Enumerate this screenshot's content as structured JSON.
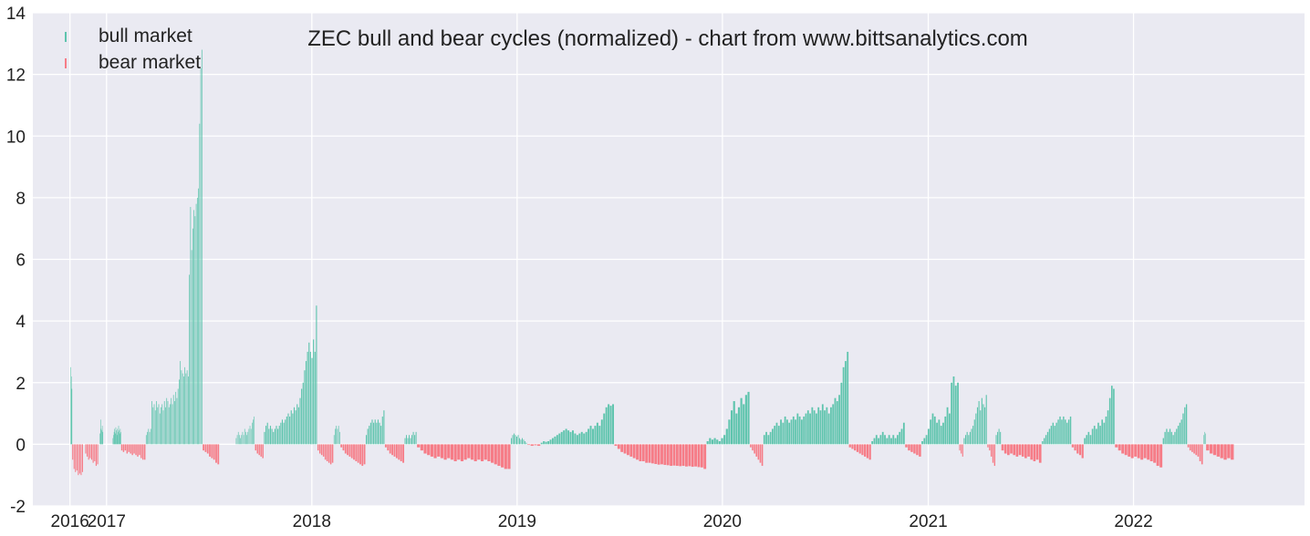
{
  "chart_data": {
    "type": "bar",
    "title": "ZEC bull and bear cycles (normalized)  - chart from www.bittsanalytics.com",
    "xlabel": "",
    "ylabel": "",
    "ylim": [
      -2,
      14
    ],
    "yticks": [
      -2,
      0,
      2,
      4,
      6,
      8,
      10,
      12,
      14
    ],
    "xticks": [
      "2016",
      "2017",
      "2018",
      "2019",
      "2020",
      "2021",
      "2022"
    ],
    "xtick_dates": [
      "2016-10-28",
      "2017-01-01",
      "2018-01-01",
      "2019-01-01",
      "2020-01-01",
      "2021-01-01",
      "2022-01-01"
    ],
    "xlim": [
      "2016-08-23",
      "2022-11-01"
    ],
    "grid": true,
    "legend_position": "top-left",
    "colors": {
      "bull": "#5ec4ad",
      "bear": "#f67c87",
      "plot_bg": "#eaeaf2",
      "grid": "#ffffff"
    },
    "series": [
      {
        "name": "bull market",
        "color": "#5ec4ad",
        "segments": [
          {
            "start": "2016-10-29",
            "end": "2016-10-31",
            "values": [
              2.5,
              2.2,
              1.8
            ]
          },
          {
            "start": "2016-12-20",
            "end": "2016-12-25",
            "values": [
              0.35,
              0.8,
              0.5,
              0.45,
              0.6,
              0.4
            ]
          },
          {
            "start": "2017-01-12",
            "end": "2017-01-26",
            "values": [
              0.2,
              0.3,
              0.4,
              0.5,
              0.35,
              0.55,
              0.45,
              0.3,
              0.5,
              0.4,
              0.6,
              0.45,
              0.35,
              0.5,
              0.4
            ]
          },
          {
            "start": "2017-03-12",
            "end": "2017-06-20",
            "values": [
              0.3,
              0.4,
              0.5,
              0.4,
              0.5,
              1.4,
              1.2,
              1.3,
              1.1,
              1.4,
              1.2,
              1.3,
              1.0,
              1.2,
              1.3,
              1.1,
              1.4,
              1.2,
              1.5,
              1.4,
              1.2,
              1.3,
              1.5,
              1.3,
              1.6,
              1.4,
              1.7,
              1.5,
              1.8,
              2.1,
              2.7,
              2.4,
              2.3,
              2.2,
              2.5,
              2.3,
              2.4,
              2.2,
              5.5,
              7.7,
              6.3,
              7.0,
              7.6,
              7.4,
              7.8,
              8.0,
              8.3,
              10.4,
              12.2,
              12.8
            ]
          },
          {
            "start": "2017-08-19",
            "end": "2017-09-21",
            "values": [
              0.2,
              0.3,
              0.4,
              0.3,
              0.2,
              0.3,
              0.4,
              0.3,
              0.5,
              0.4,
              0.3,
              0.4,
              0.5,
              0.6,
              0.5,
              0.7,
              0.8,
              0.9
            ]
          },
          {
            "start": "2017-10-08",
            "end": "2018-01-10",
            "values": [
              0.4,
              0.6,
              0.7,
              0.5,
              0.6,
              0.5,
              0.4,
              0.5,
              0.6,
              0.5,
              0.6,
              0.7,
              0.8,
              0.7,
              0.8,
              0.9,
              1.0,
              0.9,
              1.1,
              1.0,
              1.2,
              1.1,
              1.3,
              1.2,
              1.5,
              1.8,
              2.0,
              2.4,
              2.7,
              3.0,
              3.3,
              3.0,
              2.8,
              3.4,
              3.0,
              4.5
            ]
          },
          {
            "start": "2018-02-09",
            "end": "2018-02-20",
            "values": [
              0.3,
              0.5,
              0.6,
              0.5,
              0.6,
              0.4
            ]
          },
          {
            "start": "2018-04-07",
            "end": "2018-05-10",
            "values": [
              0.3,
              0.5,
              0.6,
              0.7,
              0.8,
              0.7,
              0.8,
              0.7,
              0.8,
              0.7,
              0.6,
              0.9,
              1.1
            ]
          },
          {
            "start": "2018-06-15",
            "end": "2018-07-06",
            "values": [
              0.2,
              0.3,
              0.2,
              0.3,
              0.2,
              0.3,
              0.4,
              0.3,
              0.4
            ]
          },
          {
            "start": "2018-12-21",
            "end": "2019-01-18",
            "values": [
              0.2,
              0.3,
              0.35,
              0.3,
              0.25,
              0.3,
              0.2,
              0.15,
              0.2,
              0.15,
              0.1,
              0.05
            ]
          },
          {
            "start": "2019-02-12",
            "end": "2019-06-22",
            "values": [
              0.05,
              0.1,
              0.08,
              0.1,
              0.15,
              0.2,
              0.25,
              0.3,
              0.35,
              0.4,
              0.45,
              0.5,
              0.45,
              0.4,
              0.45,
              0.35,
              0.3,
              0.35,
              0.4,
              0.35,
              0.4,
              0.5,
              0.6,
              0.5,
              0.6,
              0.7,
              0.6,
              0.8,
              1.0,
              1.2,
              1.3,
              1.25,
              1.3
            ]
          },
          {
            "start": "2019-12-04",
            "end": "2020-02-18",
            "values": [
              0.1,
              0.2,
              0.15,
              0.2,
              0.15,
              0.1,
              0.2,
              0.3,
              0.5,
              0.8,
              1.1,
              1.4,
              1.0,
              1.2,
              1.5,
              1.3,
              1.6,
              1.7
            ]
          },
          {
            "start": "2020-03-14",
            "end": "2020-08-12",
            "values": [
              0.3,
              0.4,
              0.3,
              0.4,
              0.5,
              0.6,
              0.7,
              0.6,
              0.8,
              0.7,
              0.9,
              0.8,
              0.7,
              0.8,
              0.9,
              0.8,
              1.0,
              0.9,
              0.8,
              0.9,
              1.0,
              1.1,
              1.0,
              1.2,
              1.1,
              1.0,
              1.2,
              1.1,
              1.3,
              1.1,
              1.2,
              1.0,
              1.2,
              1.3,
              1.5,
              1.4,
              1.6,
              2.0,
              2.5,
              2.7,
              3.0
            ]
          },
          {
            "start": "2020-09-22",
            "end": "2020-11-20",
            "values": [
              0.1,
              0.2,
              0.3,
              0.2,
              0.3,
              0.4,
              0.3,
              0.2,
              0.3,
              0.2,
              0.3,
              0.2,
              0.3,
              0.4,
              0.5,
              0.7
            ]
          },
          {
            "start": "2020-12-20",
            "end": "2021-02-24",
            "values": [
              0.1,
              0.2,
              0.3,
              0.5,
              0.8,
              1.0,
              0.9,
              0.7,
              0.8,
              0.6,
              0.7,
              0.9,
              1.2,
              1.0,
              2.0,
              2.2,
              1.9,
              2.0
            ]
          },
          {
            "start": "2021-03-05",
            "end": "2021-04-15",
            "values": [
              0.2,
              0.3,
              0.4,
              0.3,
              0.4,
              0.5,
              0.6,
              0.8,
              1.0,
              1.2,
              1.4,
              1.1,
              1.5,
              1.3,
              1.2,
              1.6
            ]
          },
          {
            "start": "2021-05-01",
            "end": "2021-05-10",
            "values": [
              0.3,
              0.4,
              0.5,
              0.4
            ]
          },
          {
            "start": "2021-07-22",
            "end": "2021-09-12",
            "values": [
              0.1,
              0.2,
              0.3,
              0.4,
              0.5,
              0.6,
              0.7,
              0.6,
              0.7,
              0.8,
              0.9,
              0.8,
              0.9,
              0.8,
              0.7,
              0.8,
              0.9
            ]
          },
          {
            "start": "2021-10-05",
            "end": "2021-11-28",
            "values": [
              0.2,
              0.3,
              0.4,
              0.3,
              0.5,
              0.6,
              0.5,
              0.7,
              0.6,
              0.8,
              0.7,
              0.9,
              1.1,
              1.5,
              1.9,
              1.8
            ]
          },
          {
            "start": "2022-02-22",
            "end": "2022-04-06",
            "values": [
              0.2,
              0.4,
              0.5,
              0.4,
              0.5,
              0.4,
              0.3,
              0.4,
              0.5,
              0.6,
              0.7,
              0.8,
              1.0,
              1.2,
              1.3
            ]
          },
          {
            "start": "2022-05-05",
            "end": "2022-05-09",
            "values": [
              0.3,
              0.4,
              0.35
            ]
          }
        ]
      },
      {
        "name": "bear market",
        "color": "#f67c87",
        "segments": [
          {
            "start": "2016-11-01",
            "end": "2016-11-20",
            "values": [
              -0.5,
              -0.8,
              -0.9,
              -0.85,
              -1.0,
              -0.95,
              -1.0,
              -0.9
            ]
          },
          {
            "start": "2016-11-24",
            "end": "2016-12-17",
            "values": [
              -0.3,
              -0.4,
              -0.5,
              -0.45,
              -0.5,
              -0.6,
              -0.55,
              -0.7,
              -0.65
            ]
          },
          {
            "start": "2017-01-27",
            "end": "2017-03-11",
            "values": [
              -0.2,
              -0.25,
              -0.2,
              -0.3,
              -0.25,
              -0.3,
              -0.35,
              -0.3,
              -0.35,
              -0.4,
              -0.35,
              -0.45,
              -0.5,
              -0.5
            ]
          },
          {
            "start": "2017-06-21",
            "end": "2017-07-20",
            "values": [
              -0.2,
              -0.25,
              -0.3,
              -0.4,
              -0.45,
              -0.5,
              -0.6,
              -0.65
            ]
          },
          {
            "start": "2017-09-22",
            "end": "2017-10-07",
            "values": [
              -0.2,
              -0.3,
              -0.35,
              -0.4,
              -0.45
            ]
          },
          {
            "start": "2018-01-11",
            "end": "2018-02-08",
            "values": [
              -0.2,
              -0.3,
              -0.35,
              -0.4,
              -0.5,
              -0.55,
              -0.6,
              -0.65,
              -0.6
            ]
          },
          {
            "start": "2018-02-21",
            "end": "2018-04-06",
            "values": [
              -0.1,
              -0.2,
              -0.3,
              -0.35,
              -0.4,
              -0.45,
              -0.5,
              -0.55,
              -0.6,
              -0.65,
              -0.7,
              -0.65
            ]
          },
          {
            "start": "2018-05-11",
            "end": "2018-06-14",
            "values": [
              -0.1,
              -0.2,
              -0.3,
              -0.35,
              -0.4,
              -0.45,
              -0.5,
              -0.55,
              -0.6
            ]
          },
          {
            "start": "2018-07-07",
            "end": "2018-12-20",
            "values": [
              -0.1,
              -0.2,
              -0.3,
              -0.35,
              -0.4,
              -0.45,
              -0.4,
              -0.45,
              -0.5,
              -0.45,
              -0.5,
              -0.55,
              -0.5,
              -0.55,
              -0.5,
              -0.45,
              -0.5,
              -0.55,
              -0.5,
              -0.55,
              -0.5,
              -0.55,
              -0.6,
              -0.65,
              -0.7,
              -0.75,
              -0.8,
              -0.8
            ]
          },
          {
            "start": "2019-01-19",
            "end": "2019-02-11",
            "values": [
              -0.02,
              -0.05,
              -0.03,
              -0.05
            ]
          },
          {
            "start": "2019-06-23",
            "end": "2019-12-03",
            "values": [
              -0.05,
              -0.15,
              -0.25,
              -0.3,
              -0.35,
              -0.4,
              -0.45,
              -0.5,
              -0.55,
              -0.55,
              -0.6,
              -0.6,
              -0.62,
              -0.64,
              -0.66,
              -0.65,
              -0.67,
              -0.68,
              -0.7,
              -0.69,
              -0.7,
              -0.71,
              -0.7,
              -0.72,
              -0.71,
              -0.73,
              -0.72,
              -0.74,
              -0.75,
              -0.8
            ]
          },
          {
            "start": "2020-02-19",
            "end": "2020-03-13",
            "values": [
              -0.1,
              -0.2,
              -0.3,
              -0.4,
              -0.5,
              -0.6,
              -0.7
            ]
          },
          {
            "start": "2020-08-13",
            "end": "2020-09-21",
            "values": [
              -0.1,
              -0.15,
              -0.2,
              -0.25,
              -0.3,
              -0.35,
              -0.4,
              -0.45,
              -0.5
            ]
          },
          {
            "start": "2020-11-21",
            "end": "2020-12-19",
            "values": [
              -0.1,
              -0.2,
              -0.25,
              -0.3,
              -0.35,
              -0.4
            ]
          },
          {
            "start": "2021-02-25",
            "end": "2021-03-04",
            "values": [
              -0.2,
              -0.3,
              -0.4
            ]
          },
          {
            "start": "2021-04-16",
            "end": "2021-04-30",
            "values": [
              -0.1,
              -0.2,
              -0.4,
              -0.6,
              -0.7
            ]
          },
          {
            "start": "2021-05-11",
            "end": "2021-07-21",
            "values": [
              -0.2,
              -0.3,
              -0.35,
              -0.3,
              -0.35,
              -0.4,
              -0.35,
              -0.4,
              -0.45,
              -0.4,
              -0.5,
              -0.55,
              -0.5,
              -0.6
            ]
          },
          {
            "start": "2021-09-13",
            "end": "2021-10-04",
            "values": [
              -0.1,
              -0.2,
              -0.3,
              -0.35,
              -0.45
            ]
          },
          {
            "start": "2021-11-29",
            "end": "2022-02-21",
            "values": [
              -0.1,
              -0.2,
              -0.3,
              -0.35,
              -0.4,
              -0.45,
              -0.4,
              -0.45,
              -0.5,
              -0.45,
              -0.5,
              -0.55,
              -0.6,
              -0.7,
              -0.75
            ]
          },
          {
            "start": "2022-04-07",
            "end": "2022-05-04",
            "values": [
              -0.1,
              -0.2,
              -0.25,
              -0.3,
              -0.35,
              -0.4,
              -0.55,
              -0.65
            ]
          },
          {
            "start": "2022-05-10",
            "end": "2022-06-28",
            "values": [
              -0.2,
              -0.3,
              -0.35,
              -0.4,
              -0.45,
              -0.5,
              -0.45,
              -0.5
            ]
          }
        ]
      }
    ]
  }
}
